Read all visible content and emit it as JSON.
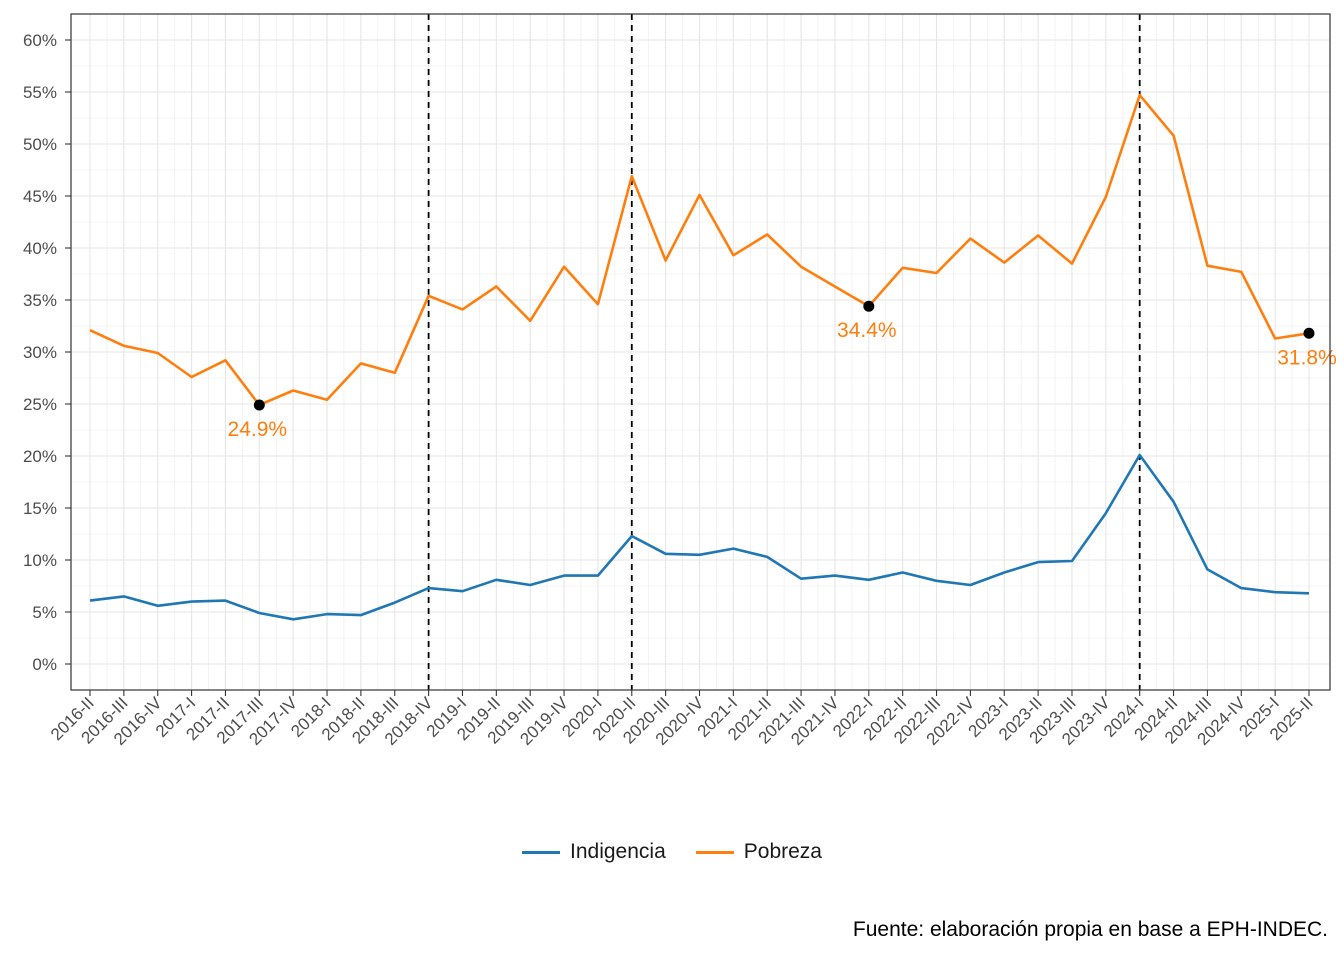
{
  "chart_data": {
    "type": "line",
    "categories": [
      "2016-II",
      "2016-III",
      "2016-IV",
      "2017-I",
      "2017-II",
      "2017-III",
      "2017-IV",
      "2018-I",
      "2018-II",
      "2018-III",
      "2018-IV",
      "2019-I",
      "2019-II",
      "2019-III",
      "2019-IV",
      "2020-I",
      "2020-II",
      "2020-III",
      "2020-IV",
      "2021-I",
      "2021-II",
      "2021-III",
      "2021-IV",
      "2022-I",
      "2022-II",
      "2022-III",
      "2022-IV",
      "2023-I",
      "2023-II",
      "2023-III",
      "2023-IV",
      "2024-I",
      "2024-II",
      "2024-III",
      "2024-IV",
      "2025-I",
      "2025-II"
    ],
    "series": [
      {
        "name": "Indigencia",
        "color": "#1f77b4",
        "values": [
          6.1,
          6.5,
          5.6,
          6.0,
          6.1,
          4.9,
          4.3,
          4.8,
          4.7,
          5.9,
          7.3,
          7.0,
          8.1,
          7.6,
          8.5,
          8.5,
          12.3,
          10.6,
          10.5,
          11.1,
          10.3,
          8.2,
          8.5,
          8.1,
          8.8,
          8.0,
          7.6,
          8.8,
          9.8,
          9.9,
          14.5,
          20.1,
          15.6,
          9.1,
          7.3,
          6.9,
          6.8
        ]
      },
      {
        "name": "Pobreza",
        "color": "#ff7f0e",
        "values": [
          32.1,
          30.6,
          29.9,
          27.6,
          29.2,
          24.9,
          26.3,
          25.4,
          28.9,
          28.0,
          35.4,
          34.1,
          36.3,
          33.0,
          38.2,
          34.6,
          46.9,
          38.8,
          45.1,
          39.3,
          41.3,
          38.2,
          36.3,
          34.4,
          38.1,
          37.6,
          40.9,
          38.6,
          41.2,
          38.5,
          44.9,
          54.7,
          50.8,
          38.3,
          37.7,
          31.3,
          31.8
        ]
      }
    ],
    "highlights": [
      {
        "category": "2017-III",
        "value": 24.9,
        "label": "24.9%"
      },
      {
        "category": "2022-I",
        "value": 34.4,
        "label": "34.4%"
      },
      {
        "category": "2025-II",
        "value": 31.8,
        "label": "31.8%"
      }
    ],
    "vlines": [
      "2018-IV",
      "2020-II",
      "2024-I"
    ],
    "y_ticks": [
      "0%",
      "5%",
      "10%",
      "15%",
      "20%",
      "25%",
      "30%",
      "35%",
      "40%",
      "45%",
      "50%",
      "55%",
      "60%"
    ],
    "ylim": [
      -2.5,
      62.5
    ],
    "grid": true,
    "legend_position": "bottom",
    "title": "",
    "xlabel": "",
    "ylabel": ""
  },
  "legend": {
    "items": [
      {
        "label": "Indigencia",
        "color": "#1f77b4"
      },
      {
        "label": "Pobreza",
        "color": "#ff7f0e"
      }
    ]
  },
  "caption": "Fuente: elaboración propia en base a EPH-INDEC."
}
